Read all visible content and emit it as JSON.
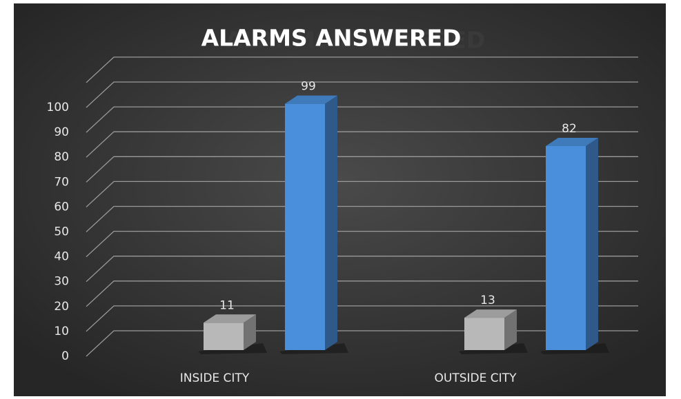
{
  "chart_data": {
    "type": "bar3d",
    "title": "ALARMS ANSWERED",
    "categories": [
      "INSIDE CITY",
      "OUTSIDE CITY"
    ],
    "series": [
      {
        "color": "#b8b8b8",
        "values": [
          11,
          13
        ]
      },
      {
        "color": "#4a8fdc",
        "values": [
          99,
          82
        ]
      }
    ],
    "ylim": [
      0,
      110
    ],
    "yticks": [
      0,
      10,
      20,
      30,
      40,
      50,
      60,
      70,
      80,
      90,
      100
    ],
    "grid": true
  }
}
